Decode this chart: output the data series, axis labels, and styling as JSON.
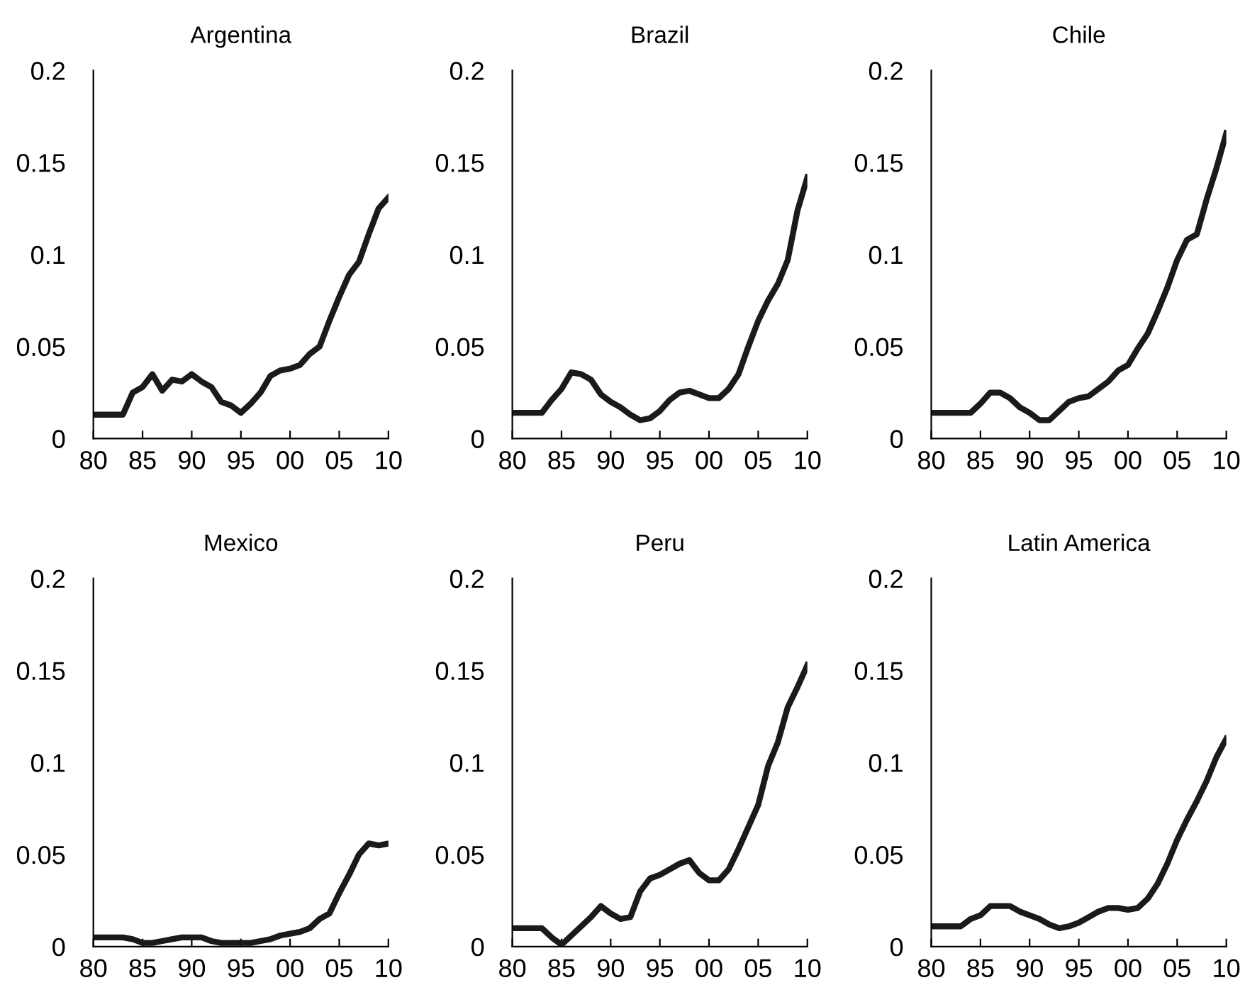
{
  "chart_data": [
    {
      "type": "line",
      "title": "Argentina",
      "x": [
        1980,
        1981,
        1982,
        1983,
        1984,
        1985,
        1986,
        1987,
        1988,
        1989,
        1990,
        1991,
        1992,
        1993,
        1994,
        1995,
        1996,
        1997,
        1998,
        1999,
        2000,
        2001,
        2002,
        2003,
        2004,
        2005,
        2006,
        2007,
        2008,
        2009,
        2010
      ],
      "series": [
        {
          "color": "#1a1a1a",
          "values": [
            0.013,
            0.013,
            0.013,
            0.013,
            0.025,
            0.028,
            0.035,
            0.026,
            0.032,
            0.031,
            0.035,
            0.031,
            0.028,
            0.02,
            0.018,
            0.014,
            0.019,
            0.025,
            0.034,
            0.037,
            0.038,
            0.04,
            0.046,
            0.05,
            0.064,
            0.077,
            0.089,
            0.096,
            0.111,
            0.125,
            0.131
          ]
        }
      ],
      "xlim": [
        1980,
        2010
      ],
      "xticks": [
        {
          "value": 1980,
          "label": "80"
        },
        {
          "value": 1985,
          "label": "85"
        },
        {
          "value": 1990,
          "label": "90"
        },
        {
          "value": 1995,
          "label": "95"
        },
        {
          "value": 2000,
          "label": "00"
        },
        {
          "value": 2005,
          "label": "05"
        },
        {
          "value": 2010,
          "label": "10"
        }
      ],
      "ylim": [
        0,
        0.2
      ],
      "yticks": [
        0,
        0.05,
        0.1,
        0.15,
        0.2
      ],
      "grid": false,
      "legend": false
    },
    {
      "type": "line",
      "title": "Brazil",
      "x": [
        1980,
        1981,
        1982,
        1983,
        1984,
        1985,
        1986,
        1987,
        1988,
        1989,
        1990,
        1991,
        1992,
        1993,
        1994,
        1995,
        1996,
        1997,
        1998,
        1999,
        2000,
        2001,
        2002,
        2003,
        2004,
        2005,
        2006,
        2007,
        2008,
        2009,
        2010
      ],
      "series": [
        {
          "color": "#1a1a1a",
          "values": [
            0.014,
            0.014,
            0.014,
            0.014,
            0.021,
            0.027,
            0.036,
            0.035,
            0.032,
            0.024,
            0.02,
            0.017,
            0.013,
            0.01,
            0.011,
            0.015,
            0.021,
            0.025,
            0.026,
            0.024,
            0.022,
            0.022,
            0.027,
            0.035,
            0.05,
            0.064,
            0.075,
            0.084,
            0.097,
            0.124,
            0.142
          ]
        }
      ],
      "xlim": [
        1980,
        2010
      ],
      "xticks": [
        {
          "value": 1980,
          "label": "80"
        },
        {
          "value": 1985,
          "label": "85"
        },
        {
          "value": 1990,
          "label": "90"
        },
        {
          "value": 1995,
          "label": "95"
        },
        {
          "value": 2000,
          "label": "00"
        },
        {
          "value": 2005,
          "label": "05"
        },
        {
          "value": 2010,
          "label": "10"
        }
      ],
      "ylim": [
        0,
        0.2
      ],
      "yticks": [
        0,
        0.05,
        0.1,
        0.15,
        0.2
      ],
      "grid": false,
      "legend": false
    },
    {
      "type": "line",
      "title": "Chile",
      "x": [
        1980,
        1981,
        1982,
        1983,
        1984,
        1985,
        1986,
        1987,
        1988,
        1989,
        1990,
        1991,
        1992,
        1993,
        1994,
        1995,
        1996,
        1997,
        1998,
        1999,
        2000,
        2001,
        2002,
        2003,
        2004,
        2005,
        2006,
        2007,
        2008,
        2009,
        2010
      ],
      "series": [
        {
          "color": "#1a1a1a",
          "values": [
            0.014,
            0.014,
            0.014,
            0.014,
            0.014,
            0.019,
            0.025,
            0.025,
            0.022,
            0.017,
            0.014,
            0.01,
            0.01,
            0.015,
            0.02,
            0.022,
            0.023,
            0.027,
            0.031,
            0.037,
            0.04,
            0.049,
            0.057,
            0.069,
            0.082,
            0.097,
            0.108,
            0.111,
            0.13,
            0.147,
            0.166
          ]
        }
      ],
      "xlim": [
        1980,
        2010
      ],
      "xticks": [
        {
          "value": 1980,
          "label": "80"
        },
        {
          "value": 1985,
          "label": "85"
        },
        {
          "value": 1990,
          "label": "90"
        },
        {
          "value": 1995,
          "label": "95"
        },
        {
          "value": 2000,
          "label": "00"
        },
        {
          "value": 2005,
          "label": "05"
        },
        {
          "value": 2010,
          "label": "10"
        }
      ],
      "ylim": [
        0,
        0.2
      ],
      "yticks": [
        0,
        0.05,
        0.1,
        0.15,
        0.2
      ],
      "grid": false,
      "legend": false
    },
    {
      "type": "line",
      "title": "Mexico",
      "x": [
        1980,
        1981,
        1982,
        1983,
        1984,
        1985,
        1986,
        1987,
        1988,
        1989,
        1990,
        1991,
        1992,
        1993,
        1994,
        1995,
        1996,
        1997,
        1998,
        1999,
        2000,
        2001,
        2002,
        2003,
        2004,
        2005,
        2006,
        2007,
        2008,
        2009,
        2010
      ],
      "series": [
        {
          "color": "#1a1a1a",
          "values": [
            0.005,
            0.005,
            0.005,
            0.005,
            0.004,
            0.002,
            0.002,
            0.003,
            0.004,
            0.005,
            0.005,
            0.005,
            0.003,
            0.002,
            0.002,
            0.002,
            0.002,
            0.003,
            0.004,
            0.006,
            0.007,
            0.008,
            0.01,
            0.015,
            0.018,
            0.029,
            0.039,
            0.05,
            0.056,
            0.055,
            0.056
          ]
        }
      ],
      "xlim": [
        1980,
        2010
      ],
      "xticks": [
        {
          "value": 1980,
          "label": "80"
        },
        {
          "value": 1985,
          "label": "85"
        },
        {
          "value": 1990,
          "label": "90"
        },
        {
          "value": 1995,
          "label": "95"
        },
        {
          "value": 2000,
          "label": "00"
        },
        {
          "value": 2005,
          "label": "05"
        },
        {
          "value": 2010,
          "label": "10"
        }
      ],
      "ylim": [
        0,
        0.2
      ],
      "yticks": [
        0,
        0.05,
        0.1,
        0.15,
        0.2
      ],
      "grid": false,
      "legend": false
    },
    {
      "type": "line",
      "title": "Peru",
      "x": [
        1980,
        1981,
        1982,
        1983,
        1984,
        1985,
        1986,
        1987,
        1988,
        1989,
        1990,
        1991,
        1992,
        1993,
        1994,
        1995,
        1996,
        1997,
        1998,
        1999,
        2000,
        2001,
        2002,
        2003,
        2004,
        2005,
        2006,
        2007,
        2008,
        2009,
        2010
      ],
      "series": [
        {
          "color": "#1a1a1a",
          "values": [
            0.01,
            0.01,
            0.01,
            0.01,
            0.005,
            0.001,
            0.006,
            0.011,
            0.016,
            0.022,
            0.018,
            0.015,
            0.016,
            0.03,
            0.037,
            0.039,
            0.042,
            0.045,
            0.047,
            0.04,
            0.036,
            0.036,
            0.042,
            0.053,
            0.065,
            0.077,
            0.098,
            0.111,
            0.13,
            0.141,
            0.153
          ]
        }
      ],
      "xlim": [
        1980,
        2010
      ],
      "xticks": [
        {
          "value": 1980,
          "label": "80"
        },
        {
          "value": 1985,
          "label": "85"
        },
        {
          "value": 1990,
          "label": "90"
        },
        {
          "value": 1995,
          "label": "95"
        },
        {
          "value": 2000,
          "label": "00"
        },
        {
          "value": 2005,
          "label": "05"
        },
        {
          "value": 2010,
          "label": "10"
        }
      ],
      "ylim": [
        0,
        0.2
      ],
      "yticks": [
        0,
        0.05,
        0.1,
        0.15,
        0.2
      ],
      "grid": false,
      "legend": false
    },
    {
      "type": "line",
      "title": "Latin America",
      "x": [
        1980,
        1981,
        1982,
        1983,
        1984,
        1985,
        1986,
        1987,
        1988,
        1989,
        1990,
        1991,
        1992,
        1993,
        1994,
        1995,
        1996,
        1997,
        1998,
        1999,
        2000,
        2001,
        2002,
        2003,
        2004,
        2005,
        2006,
        2007,
        2008,
        2009,
        2010
      ],
      "series": [
        {
          "color": "#1a1a1a",
          "values": [
            0.011,
            0.011,
            0.011,
            0.011,
            0.015,
            0.017,
            0.022,
            0.022,
            0.022,
            0.019,
            0.017,
            0.015,
            0.012,
            0.01,
            0.011,
            0.013,
            0.016,
            0.019,
            0.021,
            0.021,
            0.02,
            0.021,
            0.026,
            0.034,
            0.045,
            0.058,
            0.069,
            0.079,
            0.09,
            0.103,
            0.113
          ]
        }
      ],
      "xlim": [
        1980,
        2010
      ],
      "xticks": [
        {
          "value": 1980,
          "label": "80"
        },
        {
          "value": 1985,
          "label": "85"
        },
        {
          "value": 1990,
          "label": "90"
        },
        {
          "value": 1995,
          "label": "95"
        },
        {
          "value": 2000,
          "label": "00"
        },
        {
          "value": 2005,
          "label": "05"
        },
        {
          "value": 2010,
          "label": "10"
        }
      ],
      "ylim": [
        0,
        0.2
      ],
      "yticks": [
        0,
        0.05,
        0.1,
        0.15,
        0.2
      ],
      "grid": false,
      "legend": false
    }
  ]
}
